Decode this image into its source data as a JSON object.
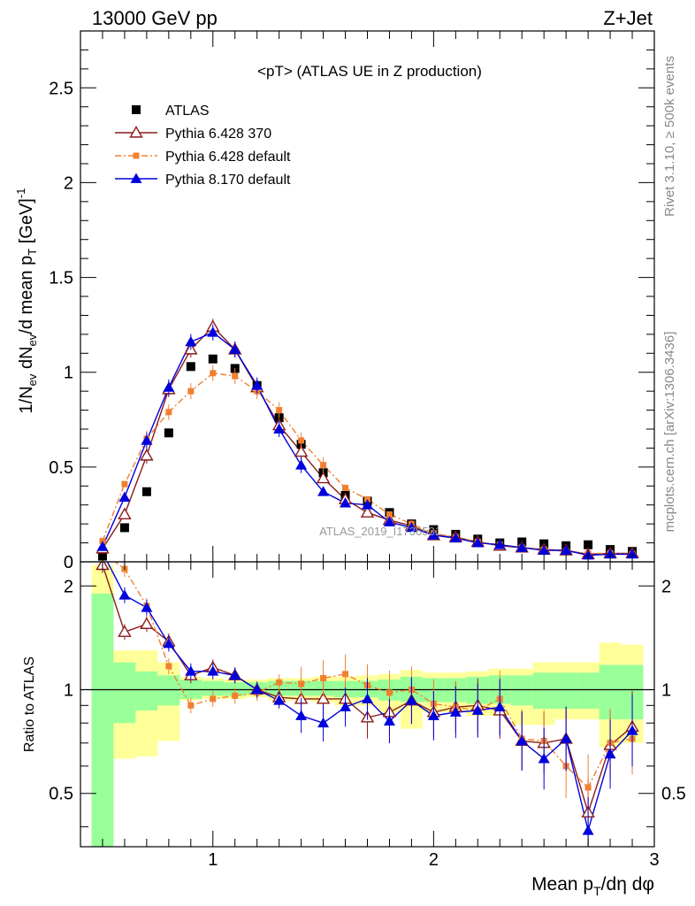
{
  "header": {
    "left": "13000 GeV pp",
    "right": "Z+Jet"
  },
  "side": {
    "rivet": "Rivet 3.1.10, ≥ 500k events",
    "mcplots": "mcplots.cern.ch [arXiv:1306.3436]"
  },
  "watermark": "ATLAS_2019_I1736531",
  "chart_data": {
    "type": "scatter",
    "title": "<pT> (ATLAS UE in Z production)",
    "xlabel": "Mean p_T/dη dφ",
    "ylabel": "1/N_ev dN_ev/d mean p_T [GeV]^-1",
    "ratio_ylabel": "Ratio to ATLAS",
    "xlim": [
      0.4,
      3.0
    ],
    "ylim": [
      0,
      2.8
    ],
    "ratio_ylim": [
      0.35,
      2.35
    ],
    "x_ticks": [
      1,
      2,
      3
    ],
    "y_ticks": [
      0,
      0.5,
      1,
      1.5,
      2,
      2.5
    ],
    "ratio_ticks": [
      0.5,
      1,
      2
    ],
    "x": [
      0.5,
      0.6,
      0.7,
      0.8,
      0.9,
      1.0,
      1.1,
      1.2,
      1.3,
      1.4,
      1.5,
      1.6,
      1.7,
      1.8,
      1.9,
      2.0,
      2.1,
      2.2,
      2.3,
      2.4,
      2.5,
      2.6,
      2.7,
      2.8,
      2.9
    ],
    "legend_position": "top-left",
    "series": [
      {
        "name": "ATLAS",
        "color": "#000000",
        "marker": "square",
        "values": [
          0.03,
          0.18,
          0.37,
          0.68,
          1.03,
          1.07,
          1.02,
          0.93,
          0.76,
          0.62,
          0.47,
          0.35,
          0.32,
          0.26,
          0.2,
          0.17,
          0.145,
          0.12,
          0.1,
          0.105,
          0.095,
          0.085,
          0.09,
          0.065,
          0.055
        ]
      },
      {
        "name": "Pythia 6.428 370",
        "color": "#8b1a1a",
        "marker": "triangle-open",
        "line": "solid",
        "values": [
          0.07,
          0.25,
          0.56,
          0.91,
          1.12,
          1.24,
          1.12,
          0.92,
          0.72,
          0.58,
          0.44,
          0.33,
          0.26,
          0.22,
          0.19,
          0.14,
          0.13,
          0.105,
          0.085,
          0.075,
          0.065,
          0.06,
          0.04,
          0.045,
          0.045
        ]
      },
      {
        "name": "Pythia 6.428 default",
        "color": "#f08030",
        "marker": "square-small",
        "line": "dashdot",
        "values": [
          0.11,
          0.41,
          0.65,
          0.79,
          0.9,
          0.995,
          0.98,
          0.9,
          0.8,
          0.64,
          0.51,
          0.39,
          0.33,
          0.25,
          0.2,
          0.15,
          0.13,
          0.105,
          0.09,
          0.075,
          0.065,
          0.055,
          0.045,
          0.045,
          0.04
        ]
      },
      {
        "name": "Pythia 8.170 default",
        "color": "#0000dd",
        "marker": "triangle",
        "line": "solid",
        "values": [
          0.08,
          0.34,
          0.64,
          0.92,
          1.16,
          1.21,
          1.12,
          0.93,
          0.7,
          0.51,
          0.37,
          0.31,
          0.3,
          0.21,
          0.18,
          0.14,
          0.125,
          0.1,
          0.09,
          0.075,
          0.06,
          0.06,
          0.035,
          0.04,
          0.04
        ]
      }
    ],
    "ratio_series": [
      {
        "name": "Pythia 6.428 370",
        "values": [
          2.3,
          1.47,
          1.55,
          1.38,
          1.1,
          1.16,
          1.1,
          1.0,
          0.95,
          0.94,
          0.94,
          0.94,
          0.83,
          0.86,
          0.93,
          0.86,
          0.89,
          0.9,
          0.87,
          0.71,
          0.7,
          0.72,
          0.44,
          0.69,
          0.78
        ]
      },
      {
        "name": "Pythia 6.428 default",
        "values": [
          2.5,
          2.24,
          1.75,
          1.17,
          0.9,
          0.94,
          0.96,
          0.98,
          1.05,
          1.04,
          1.08,
          1.11,
          1.03,
          0.98,
          1.0,
          0.91,
          0.89,
          0.87,
          0.94,
          0.72,
          0.71,
          0.6,
          0.52,
          0.7,
          0.72
        ]
      },
      {
        "name": "Pythia 8.170 default",
        "values": [
          2.5,
          1.88,
          1.73,
          1.36,
          1.13,
          1.13,
          1.1,
          1.0,
          0.93,
          0.84,
          0.8,
          0.89,
          0.94,
          0.81,
          0.93,
          0.84,
          0.86,
          0.87,
          0.89,
          0.71,
          0.63,
          0.72,
          0.39,
          0.65,
          0.76
        ]
      }
    ],
    "error_bands": {
      "green_colour": "#99ff99",
      "yellow_colour": "#ffff99",
      "x_edges": [
        0.45,
        0.55,
        0.65,
        0.75,
        0.85,
        0.95,
        1.05,
        1.15,
        1.25,
        1.35,
        1.45,
        1.55,
        1.65,
        1.75,
        1.85,
        1.95,
        2.05,
        2.15,
        2.25,
        2.35,
        2.45,
        2.55,
        2.65,
        2.75,
        2.85,
        2.95
      ],
      "green_lo": [
        0.35,
        0.8,
        0.87,
        0.9,
        0.94,
        0.96,
        0.96,
        0.97,
        0.96,
        0.96,
        0.96,
        0.95,
        0.95,
        0.93,
        0.92,
        0.92,
        0.92,
        0.91,
        0.91,
        0.9,
        0.88,
        0.88,
        0.88,
        0.82,
        0.82
      ],
      "green_hi": [
        1.9,
        1.2,
        1.13,
        1.1,
        1.07,
        1.06,
        1.05,
        1.05,
        1.06,
        1.06,
        1.06,
        1.06,
        1.06,
        1.07,
        1.09,
        1.08,
        1.08,
        1.09,
        1.1,
        1.1,
        1.12,
        1.12,
        1.12,
        1.18,
        1.18
      ],
      "yellow_lo": [
        0.35,
        0.63,
        0.64,
        0.71,
        0.93,
        0.94,
        0.94,
        0.95,
        0.93,
        0.93,
        0.92,
        0.9,
        0.9,
        0.86,
        0.77,
        0.86,
        0.86,
        0.84,
        0.84,
        0.79,
        0.79,
        0.82,
        0.82,
        0.68,
        0.7
      ],
      "yellow_hi": [
        2.3,
        1.3,
        1.3,
        1.2,
        1.09,
        1.08,
        1.07,
        1.07,
        1.08,
        1.08,
        1.09,
        1.09,
        1.1,
        1.11,
        1.14,
        1.12,
        1.12,
        1.13,
        1.15,
        1.15,
        1.2,
        1.2,
        1.2,
        1.37,
        1.35
      ]
    }
  }
}
